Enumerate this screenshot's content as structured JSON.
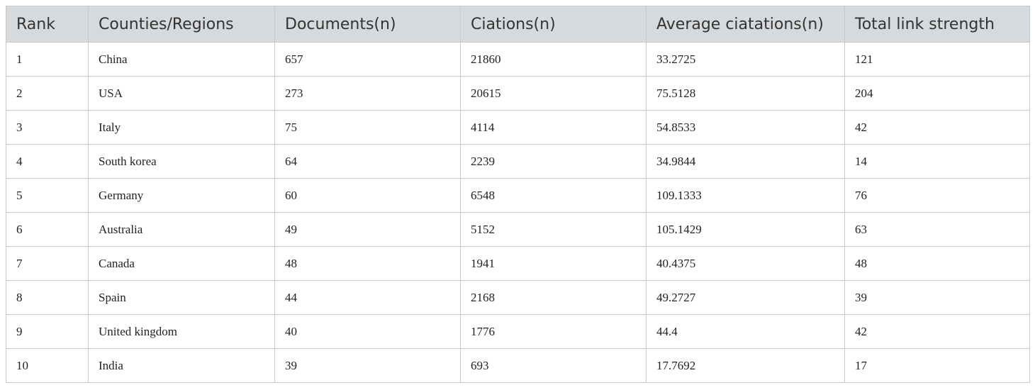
{
  "table": {
    "columns": [
      "Rank",
      "Counties/Regions",
      "Documents(n)",
      "Ciations(n)",
      "Average ciatations(n)",
      "Total link strength"
    ],
    "rows": [
      [
        "1",
        "China",
        "657",
        "21860",
        "33.2725",
        "121"
      ],
      [
        "2",
        "USA",
        "273",
        "20615",
        "75.5128",
        "204"
      ],
      [
        "3",
        "Italy",
        "75",
        "4114",
        "54.8533",
        "42"
      ],
      [
        "4",
        "South korea",
        "64",
        "2239",
        "34.9844",
        "14"
      ],
      [
        "5",
        "Germany",
        "60",
        "6548",
        "109.1333",
        "76"
      ],
      [
        "6",
        "Australia",
        "49",
        "5152",
        "105.1429",
        "63"
      ],
      [
        "7",
        "Canada",
        "48",
        "1941",
        "40.4375",
        "48"
      ],
      [
        "8",
        "Spain",
        "44",
        "2168",
        "49.2727",
        "39"
      ],
      [
        "9",
        "United kingdom",
        "40",
        "1776",
        "44.4",
        "42"
      ],
      [
        "10",
        "India",
        "39",
        "693",
        "17.7692",
        "17"
      ]
    ]
  }
}
